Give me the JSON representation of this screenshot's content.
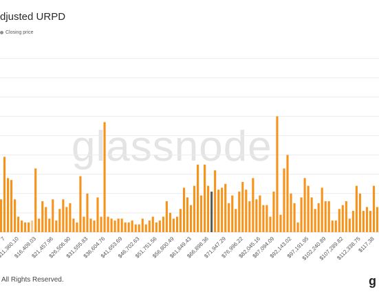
{
  "title": "djusted URPD",
  "legend": {
    "closing_label": "Closing price",
    "closing_color": "#8a8f98"
  },
  "watermark": "glassnode",
  "footer": "All Rights Reserved.",
  "logo": "g",
  "chart_data": {
    "type": "bar",
    "title": "djusted URPD",
    "xlabel": "",
    "ylabel": "",
    "ylim": [
      0,
      100
    ],
    "grid": true,
    "bar_color": "#f7931a",
    "highlight_color": "#5a5a5a",
    "highlight_index": 61,
    "pale_index": 9,
    "x_tick_labels": [
      {
        "index": 0,
        "label": "7"
      },
      {
        "index": 4,
        "label": "$11,360.10"
      },
      {
        "index": 9,
        "label": "$16,409.03"
      },
      {
        "index": 14,
        "label": "$21,457.96"
      },
      {
        "index": 19,
        "label": "$26,506.90"
      },
      {
        "index": 24,
        "label": "$31,555.83"
      },
      {
        "index": 29,
        "label": "$36,604.76"
      },
      {
        "index": 34,
        "label": "$41,653.69"
      },
      {
        "index": 39,
        "label": "$46,702.63"
      },
      {
        "index": 44,
        "label": "$51,751.56"
      },
      {
        "index": 49,
        "label": "$56,800.49"
      },
      {
        "index": 54,
        "label": "$61,849.43"
      },
      {
        "index": 59,
        "label": "$66,898.36"
      },
      {
        "index": 64,
        "label": "$71,947.29"
      },
      {
        "index": 69,
        "label": "$76,996.22"
      },
      {
        "index": 74,
        "label": "$82,045.16"
      },
      {
        "index": 78,
        "label": "$87,094.09"
      },
      {
        "index": 83,
        "label": "$92,143.02"
      },
      {
        "index": 88,
        "label": "$97,191.95"
      },
      {
        "index": 93,
        "label": "$102,240.89"
      },
      {
        "index": 98,
        "label": "$107,289.82"
      },
      {
        "index": 103,
        "label": "$112,338.75"
      },
      {
        "index": 107,
        "label": "$117,38"
      }
    ],
    "values": [
      17,
      39,
      28,
      27,
      17,
      8,
      6,
      5,
      5,
      6,
      33,
      7,
      16,
      13,
      7,
      17,
      6,
      12,
      17,
      13,
      15,
      7,
      5,
      29,
      8,
      20,
      7,
      6,
      18,
      8,
      57,
      8,
      7,
      6,
      7,
      7,
      5,
      5,
      6,
      4,
      4,
      7,
      4,
      6,
      8,
      5,
      6,
      8,
      16,
      10,
      7,
      8,
      12,
      23,
      18,
      14,
      24,
      35,
      19,
      35,
      24,
      21,
      32,
      22,
      23,
      25,
      15,
      19,
      12,
      21,
      26,
      22,
      16,
      28,
      17,
      19,
      14,
      14,
      8,
      21,
      60,
      9,
      33,
      40,
      20,
      15,
      5,
      18,
      28,
      24,
      18,
      12,
      15,
      23,
      16,
      16,
      6,
      6,
      12,
      14,
      16,
      7,
      11,
      24,
      20,
      11,
      13,
      11,
      24,
      13
    ]
  }
}
